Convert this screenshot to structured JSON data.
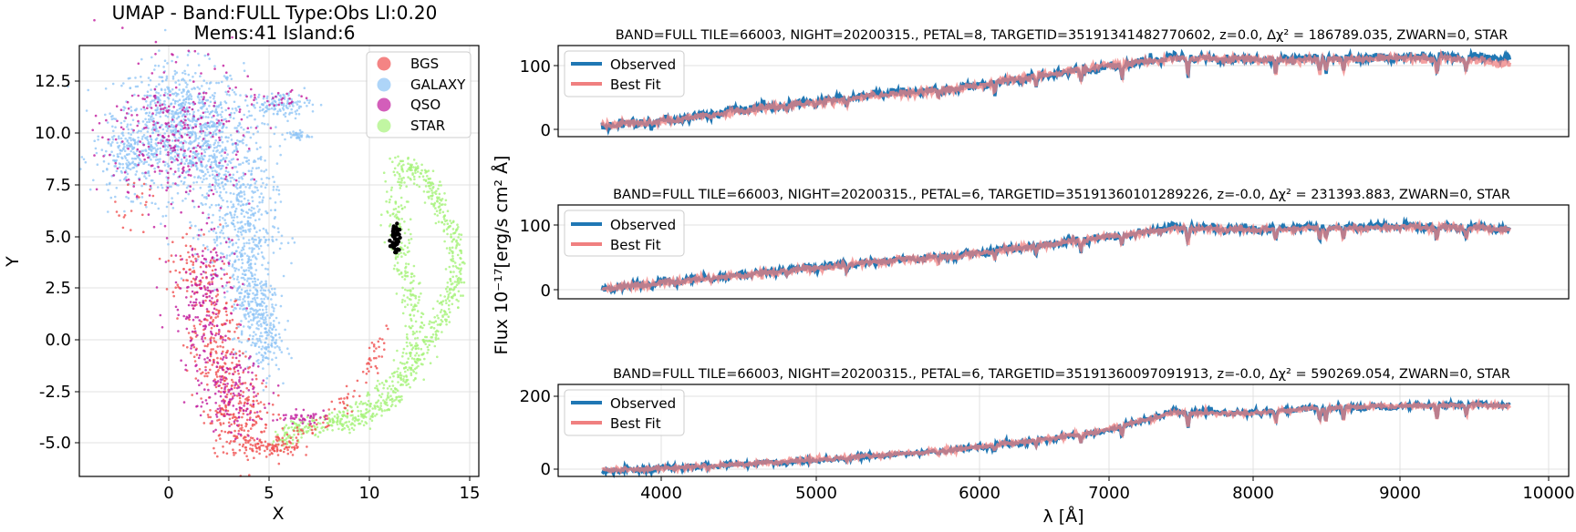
{
  "umap": {
    "title_line1": "UMAP  -  Band:FULL Type:Obs LI:0.20",
    "title_line2": "Mems:41 Island:6",
    "xlabel": "X",
    "ylabel": "Y",
    "xticks": [
      "0",
      "5",
      "10",
      "15"
    ],
    "yticks": [
      "12.5",
      "10.0",
      "7.5",
      "5.0",
      "2.5",
      "0.0",
      "-2.5",
      "-5.0"
    ],
    "legend": [
      {
        "label": "BGS",
        "color": "#f05050"
      },
      {
        "label": "GALAXY",
        "color": "#8cc3f5"
      },
      {
        "label": "QSO",
        "color": "#c0199c"
      },
      {
        "label": "STAR",
        "color": "#a6f27a"
      }
    ],
    "member_color": "#000000"
  },
  "spectra": {
    "ylabel": "Flux 10⁻¹⁷[erg/s cm² Å]",
    "xlabel": "λ [Å]",
    "xticks": [
      "4000",
      "5000",
      "6000",
      "7000",
      "8000",
      "9000",
      "10000"
    ],
    "legend_observed": "Observed",
    "legend_bestfit": "Best Fit",
    "observed_color": "#1f77b4",
    "bestfit_color": "#f08080",
    "panels": [
      {
        "title": "BAND=FULL TILE=66003, NIGHT=20200315., PETAL=8, TARGETID=35191341482770602, z=0.0, Δχ² = 186789.035, ZWARN=0, STAR",
        "yticks": [
          "100",
          "0"
        ]
      },
      {
        "title": "BAND=FULL TILE=66003, NIGHT=20200315., PETAL=6, TARGETID=35191360101289226, z=-0.0, Δχ² = 231393.883, ZWARN=0, STAR",
        "yticks": [
          "100",
          "0"
        ]
      },
      {
        "title": "BAND=FULL TILE=66003, NIGHT=20200315., PETAL=6, TARGETID=35191360097091913, z=-0.0, Δχ² = 590269.054, ZWARN=0, STAR",
        "yticks": [
          "200",
          "0"
        ]
      }
    ]
  },
  "chart_data": [
    {
      "type": "scatter",
      "title": "UMAP  -  Band:FULL Type:Obs LI:0.20 / Mems:41 Island:6",
      "xlabel": "X",
      "ylabel": "Y",
      "xlim": [
        -4.5,
        15.5
      ],
      "ylim": [
        -6.6,
        14.5
      ],
      "grid": true,
      "legend_position": "top-right",
      "series": [
        {
          "name": "BGS",
          "description_points": [
            [
              2.5,
              -1.0
            ],
            [
              3.8,
              -4.5
            ],
            [
              5.0,
              -5.5
            ],
            [
              1.5,
              3.0
            ],
            [
              8.5,
              -3.5
            ]
          ]
        },
        {
          "name": "GALAXY",
          "description_points": [
            [
              0.0,
              10.5
            ],
            [
              2.5,
              9.0
            ],
            [
              4.0,
              4.0
            ],
            [
              -2.5,
              9.0
            ],
            [
              6.0,
              11.8
            ]
          ]
        },
        {
          "name": "QSO",
          "description_points": [
            [
              0.5,
              10.0
            ],
            [
              2.0,
              1.0
            ],
            [
              3.0,
              -2.0
            ],
            [
              6.5,
              -3.7
            ]
          ]
        },
        {
          "name": "STAR",
          "description_points": [
            [
              12.0,
              8.5
            ],
            [
              14.5,
              4.5
            ],
            [
              13.0,
              0.0
            ],
            [
              9.5,
              -4.0
            ],
            [
              6.0,
              -5.0
            ]
          ]
        }
      ],
      "members_cluster": {
        "x": 11.3,
        "y_range": [
          4.3,
          5.8
        ],
        "count": 41
      }
    },
    {
      "type": "line",
      "xlabel": "λ [Å]",
      "ylabel": "Flux 10⁻¹⁷[erg/s cm² Å]",
      "xlim": [
        3300,
        10200
      ],
      "panels": [
        {
          "ylim": [
            -12,
            130
          ],
          "x": [
            3600,
            4000,
            4500,
            5000,
            5500,
            6000,
            6500,
            7000,
            7500,
            8000,
            8500,
            9000,
            9500,
            9800
          ],
          "observed": [
            5,
            12,
            28,
            40,
            55,
            62,
            80,
            95,
            112,
            108,
            110,
            112,
            112,
            110
          ],
          "bestfit": [
            6,
            11,
            27,
            40,
            53,
            62,
            80,
            97,
            110,
            108,
            108,
            110,
            108,
            102
          ]
        },
        {
          "ylim": [
            -15,
            160
          ],
          "x": [
            3600,
            4000,
            4500,
            5000,
            5500,
            6000,
            6500,
            7000,
            7500,
            8000,
            8500,
            9000,
            9500,
            9800
          ],
          "observed": [
            3,
            15,
            28,
            42,
            55,
            65,
            82,
            98,
            118,
            115,
            118,
            120,
            118,
            116
          ],
          "bestfit": [
            4,
            14,
            27,
            41,
            55,
            64,
            82,
            98,
            116,
            114,
            116,
            118,
            118,
            114
          ]
        },
        {
          "ylim": [
            -12,
            220
          ],
          "x": [
            3600,
            4000,
            4500,
            5000,
            5500,
            6000,
            6500,
            7000,
            7500,
            8000,
            8500,
            9000,
            9500,
            9800
          ],
          "observed": [
            3,
            8,
            18,
            28,
            40,
            55,
            75,
            100,
            150,
            148,
            160,
            165,
            170,
            168
          ],
          "bestfit": [
            4,
            8,
            18,
            29,
            41,
            55,
            76,
            102,
            148,
            147,
            160,
            166,
            168,
            165
          ]
        }
      ]
    }
  ]
}
